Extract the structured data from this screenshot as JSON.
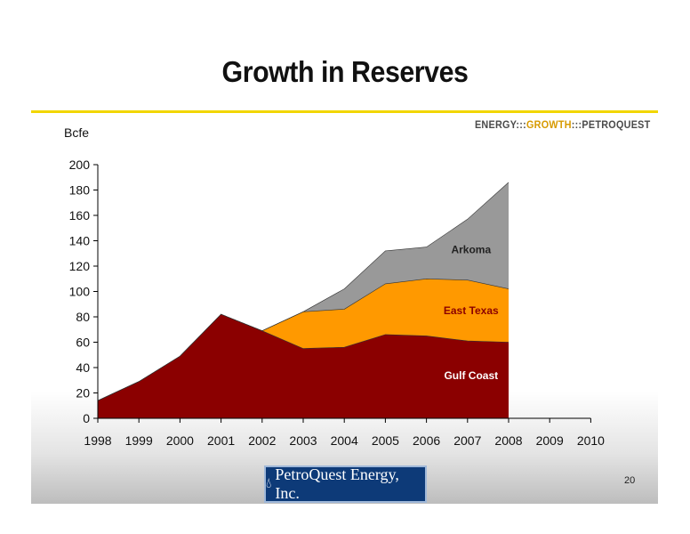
{
  "slide": {
    "title": "Growth in Reserves",
    "tagline": {
      "part1": "ENERGY:::",
      "part2": "GROWTH",
      "part3": ":::PETROQUEST"
    },
    "page_number": "20",
    "logo_text": "PetroQuest Energy, Inc."
  },
  "colors": {
    "gulf_coast": "#8b0000",
    "east_texas": "#ff9900",
    "arkoma": "#999999",
    "rule": "#f2d600"
  },
  "chart_data": {
    "type": "area",
    "ylabel": "Bcfe",
    "xlabel": "",
    "ylim": [
      0,
      200
    ],
    "yticks": [
      0,
      20,
      40,
      60,
      80,
      100,
      120,
      140,
      160,
      180,
      200
    ],
    "x": [
      "1998",
      "1999",
      "2000",
      "2001",
      "2002",
      "2003",
      "2004",
      "2005",
      "2006",
      "2007",
      "2008",
      "2009",
      "2010"
    ],
    "stacked": true,
    "series": [
      {
        "name": "Gulf Coast",
        "values": [
          14,
          29,
          49,
          82,
          69,
          55,
          56,
          66,
          65,
          61,
          60,
          null,
          null
        ]
      },
      {
        "name": "East Texas",
        "values": [
          0,
          0,
          0,
          0,
          0,
          29,
          30,
          40,
          45,
          48,
          42,
          null,
          null
        ]
      },
      {
        "name": "Arkoma",
        "values": [
          0,
          0,
          0,
          0,
          0,
          0,
          16,
          26,
          25,
          48,
          84,
          null,
          null
        ]
      }
    ],
    "grid": false,
    "legend": "inline labels"
  }
}
